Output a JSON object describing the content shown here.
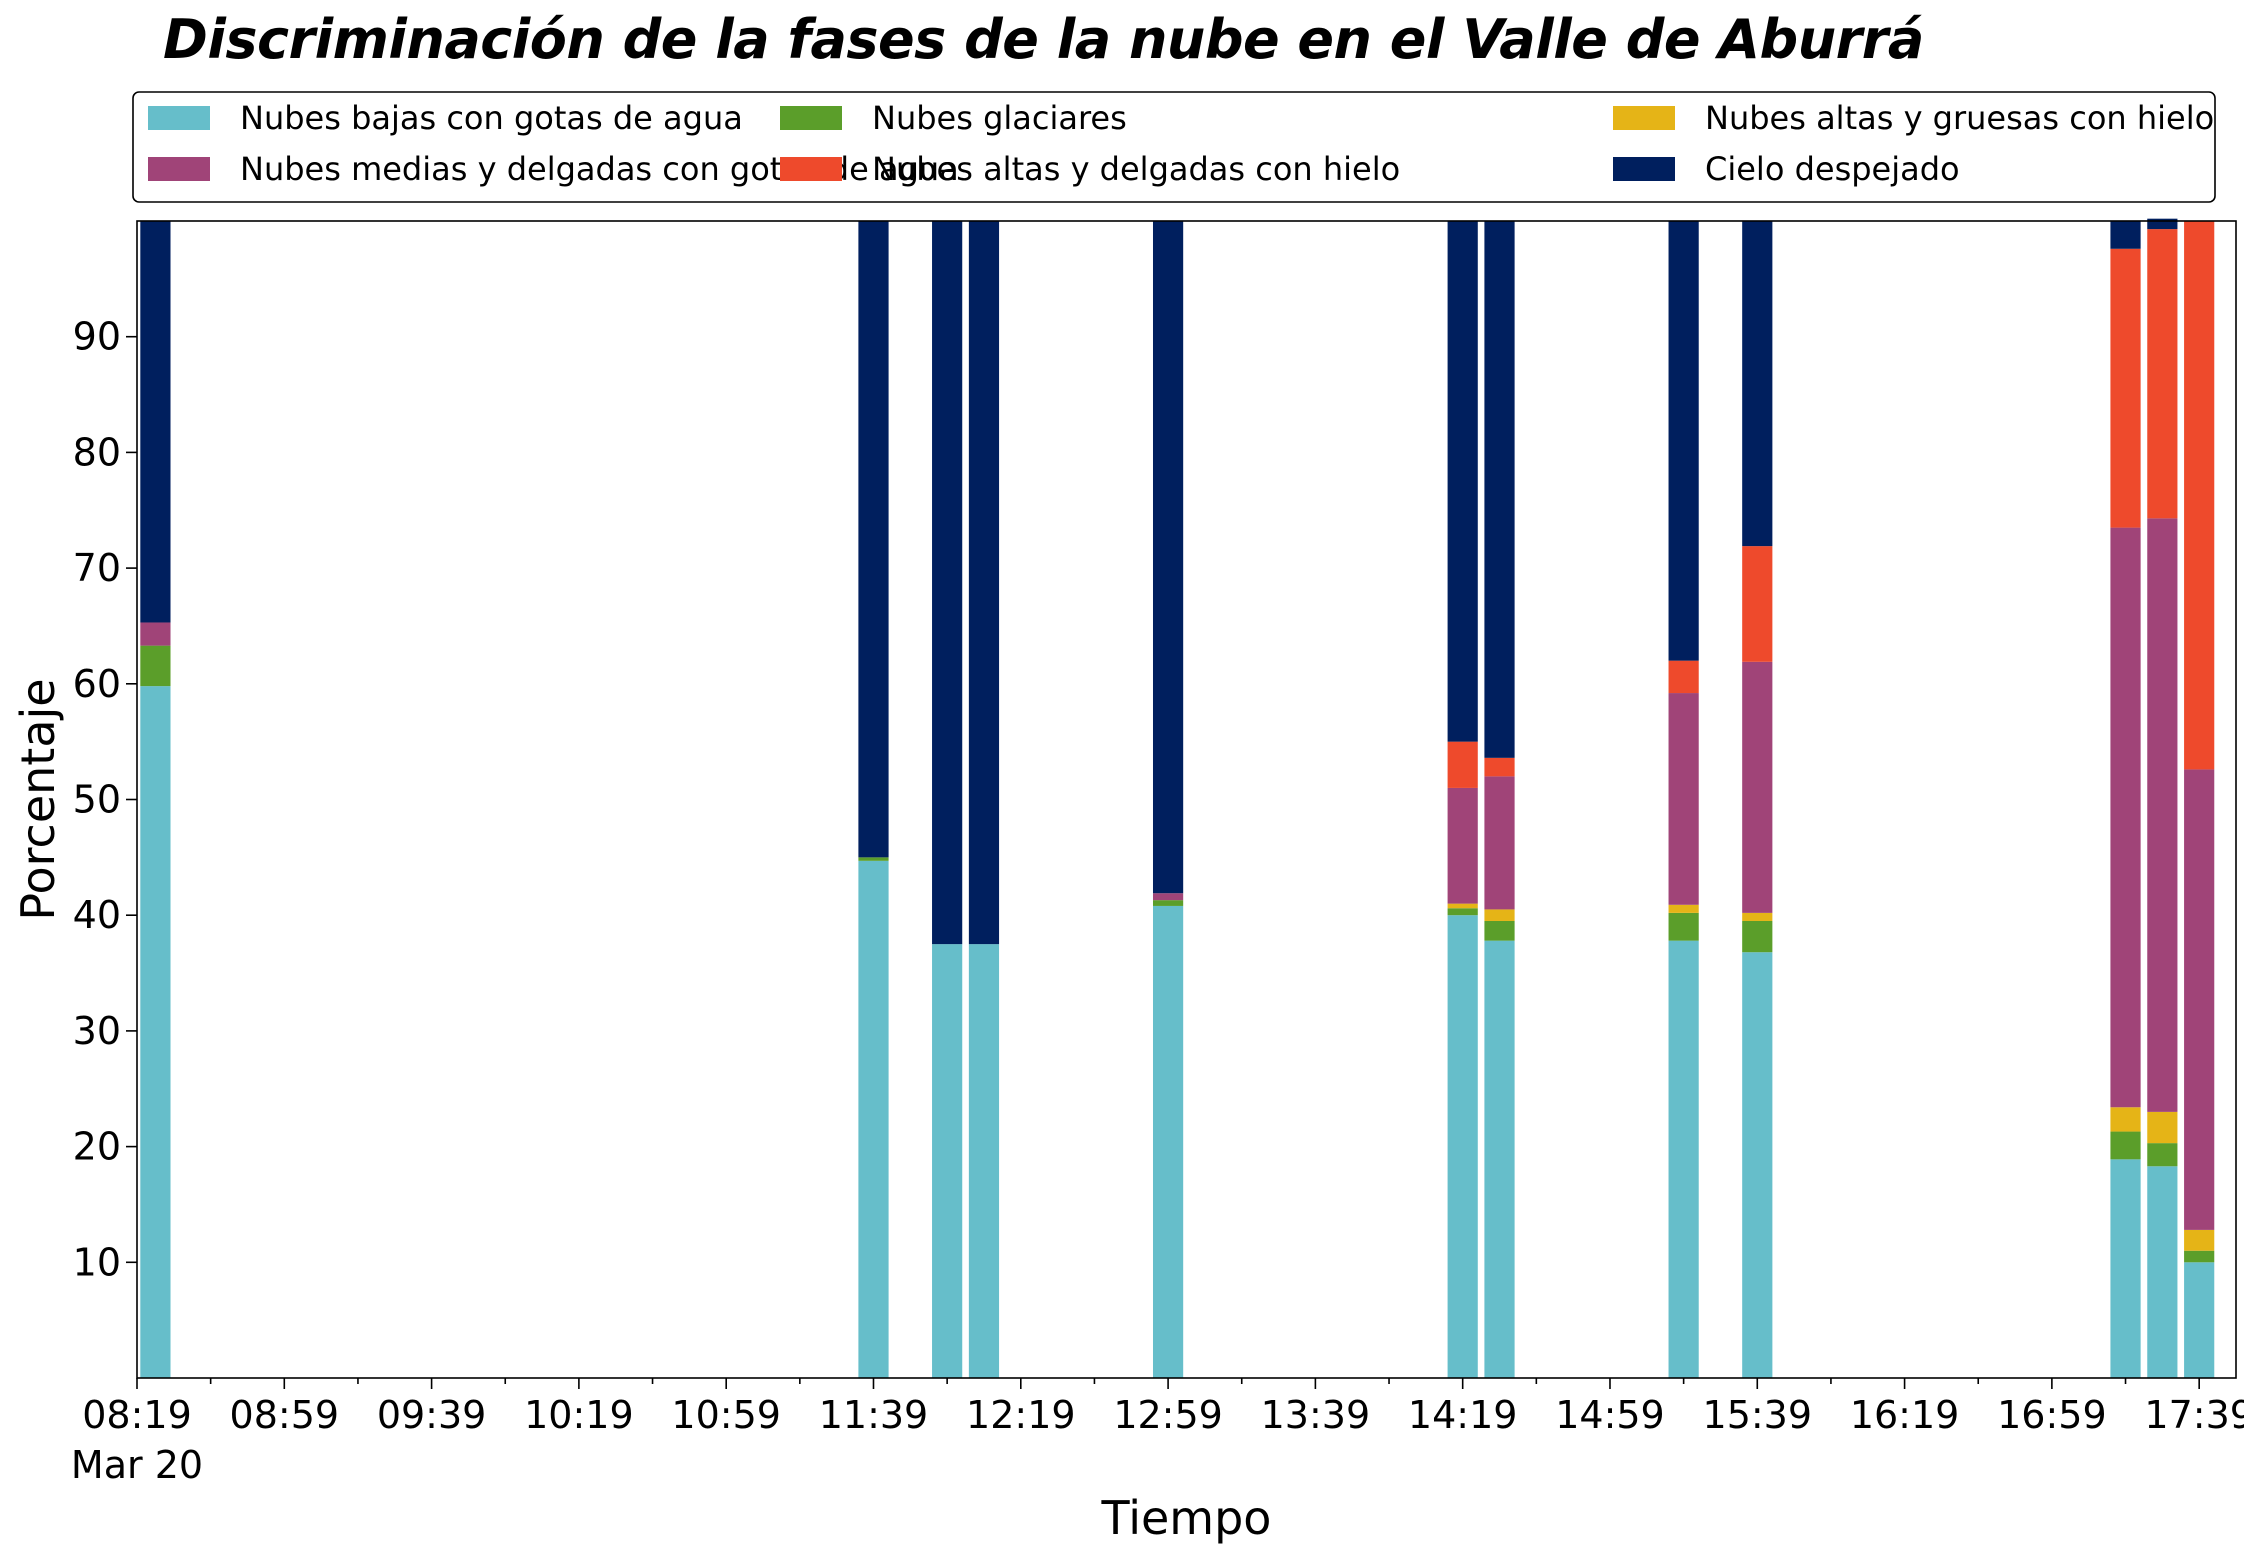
{
  "chart_data": {
    "type": "bar",
    "stacked": true,
    "title": "Discriminación de la fases de la nube en el Valle de Aburrá",
    "xlabel": "Tiempo",
    "ylabel": "Porcentaje",
    "ylim": [
      0,
      100
    ],
    "yticks": [
      10,
      20,
      30,
      40,
      50,
      60,
      70,
      80,
      90
    ],
    "x_range": [
      "08:19",
      "17:49"
    ],
    "xticks": [
      "08:19",
      "08:59",
      "09:39",
      "10:19",
      "10:59",
      "11:39",
      "12:19",
      "12:59",
      "13:39",
      "14:19",
      "14:59",
      "15:39",
      "16:19",
      "16:59",
      "17:39"
    ],
    "x_date_label": "Mar 20",
    "grid": false,
    "legend_position": "top",
    "x": [
      "08:24",
      "11:39",
      "11:59",
      "12:09",
      "12:59",
      "14:19",
      "14:29",
      "15:19",
      "15:39",
      "17:19",
      "17:29",
      "17:39"
    ],
    "series": [
      {
        "name": "Nubes bajas con gotas de agua",
        "color": "#66BECA",
        "values": [
          59.8,
          44.7,
          37.5,
          37.5,
          40.8,
          40.0,
          37.8,
          37.8,
          36.8,
          18.9,
          18.3,
          10.0
        ]
      },
      {
        "name": "Nubes glaciares",
        "color": "#5B9E2A",
        "values": [
          3.5,
          0.3,
          0,
          0,
          0.5,
          0.6,
          1.7,
          2.4,
          2.7,
          2.4,
          2.0,
          1.0
        ]
      },
      {
        "name": "Nubes altas y gruesas con hielo",
        "color": "#E5B417",
        "values": [
          0,
          0,
          0,
          0,
          0,
          0.4,
          1.0,
          0.7,
          0.7,
          2.1,
          2.7,
          1.8
        ]
      },
      {
        "name": "Nubes medias y delgadas con gotas de agua",
        "color": "#A04478",
        "values": [
          2.0,
          0,
          0,
          0,
          0.6,
          10.0,
          11.5,
          18.3,
          21.7,
          50.1,
          51.3,
          39.8
        ]
      },
      {
        "name": "Nubes altas y delgadas con hielo",
        "color": "#EE4A2C",
        "values": [
          0,
          0,
          0,
          0,
          0,
          4.0,
          1.6,
          2.8,
          10.0,
          24.1,
          25.0,
          47.4
        ]
      },
      {
        "name": "Cielo despejado",
        "color": "#001F5E",
        "values": [
          34.7,
          55.0,
          62.5,
          62.5,
          58.1,
          45.0,
          46.4,
          38.0,
          28.1,
          2.4,
          0.9,
          0
        ]
      }
    ]
  }
}
